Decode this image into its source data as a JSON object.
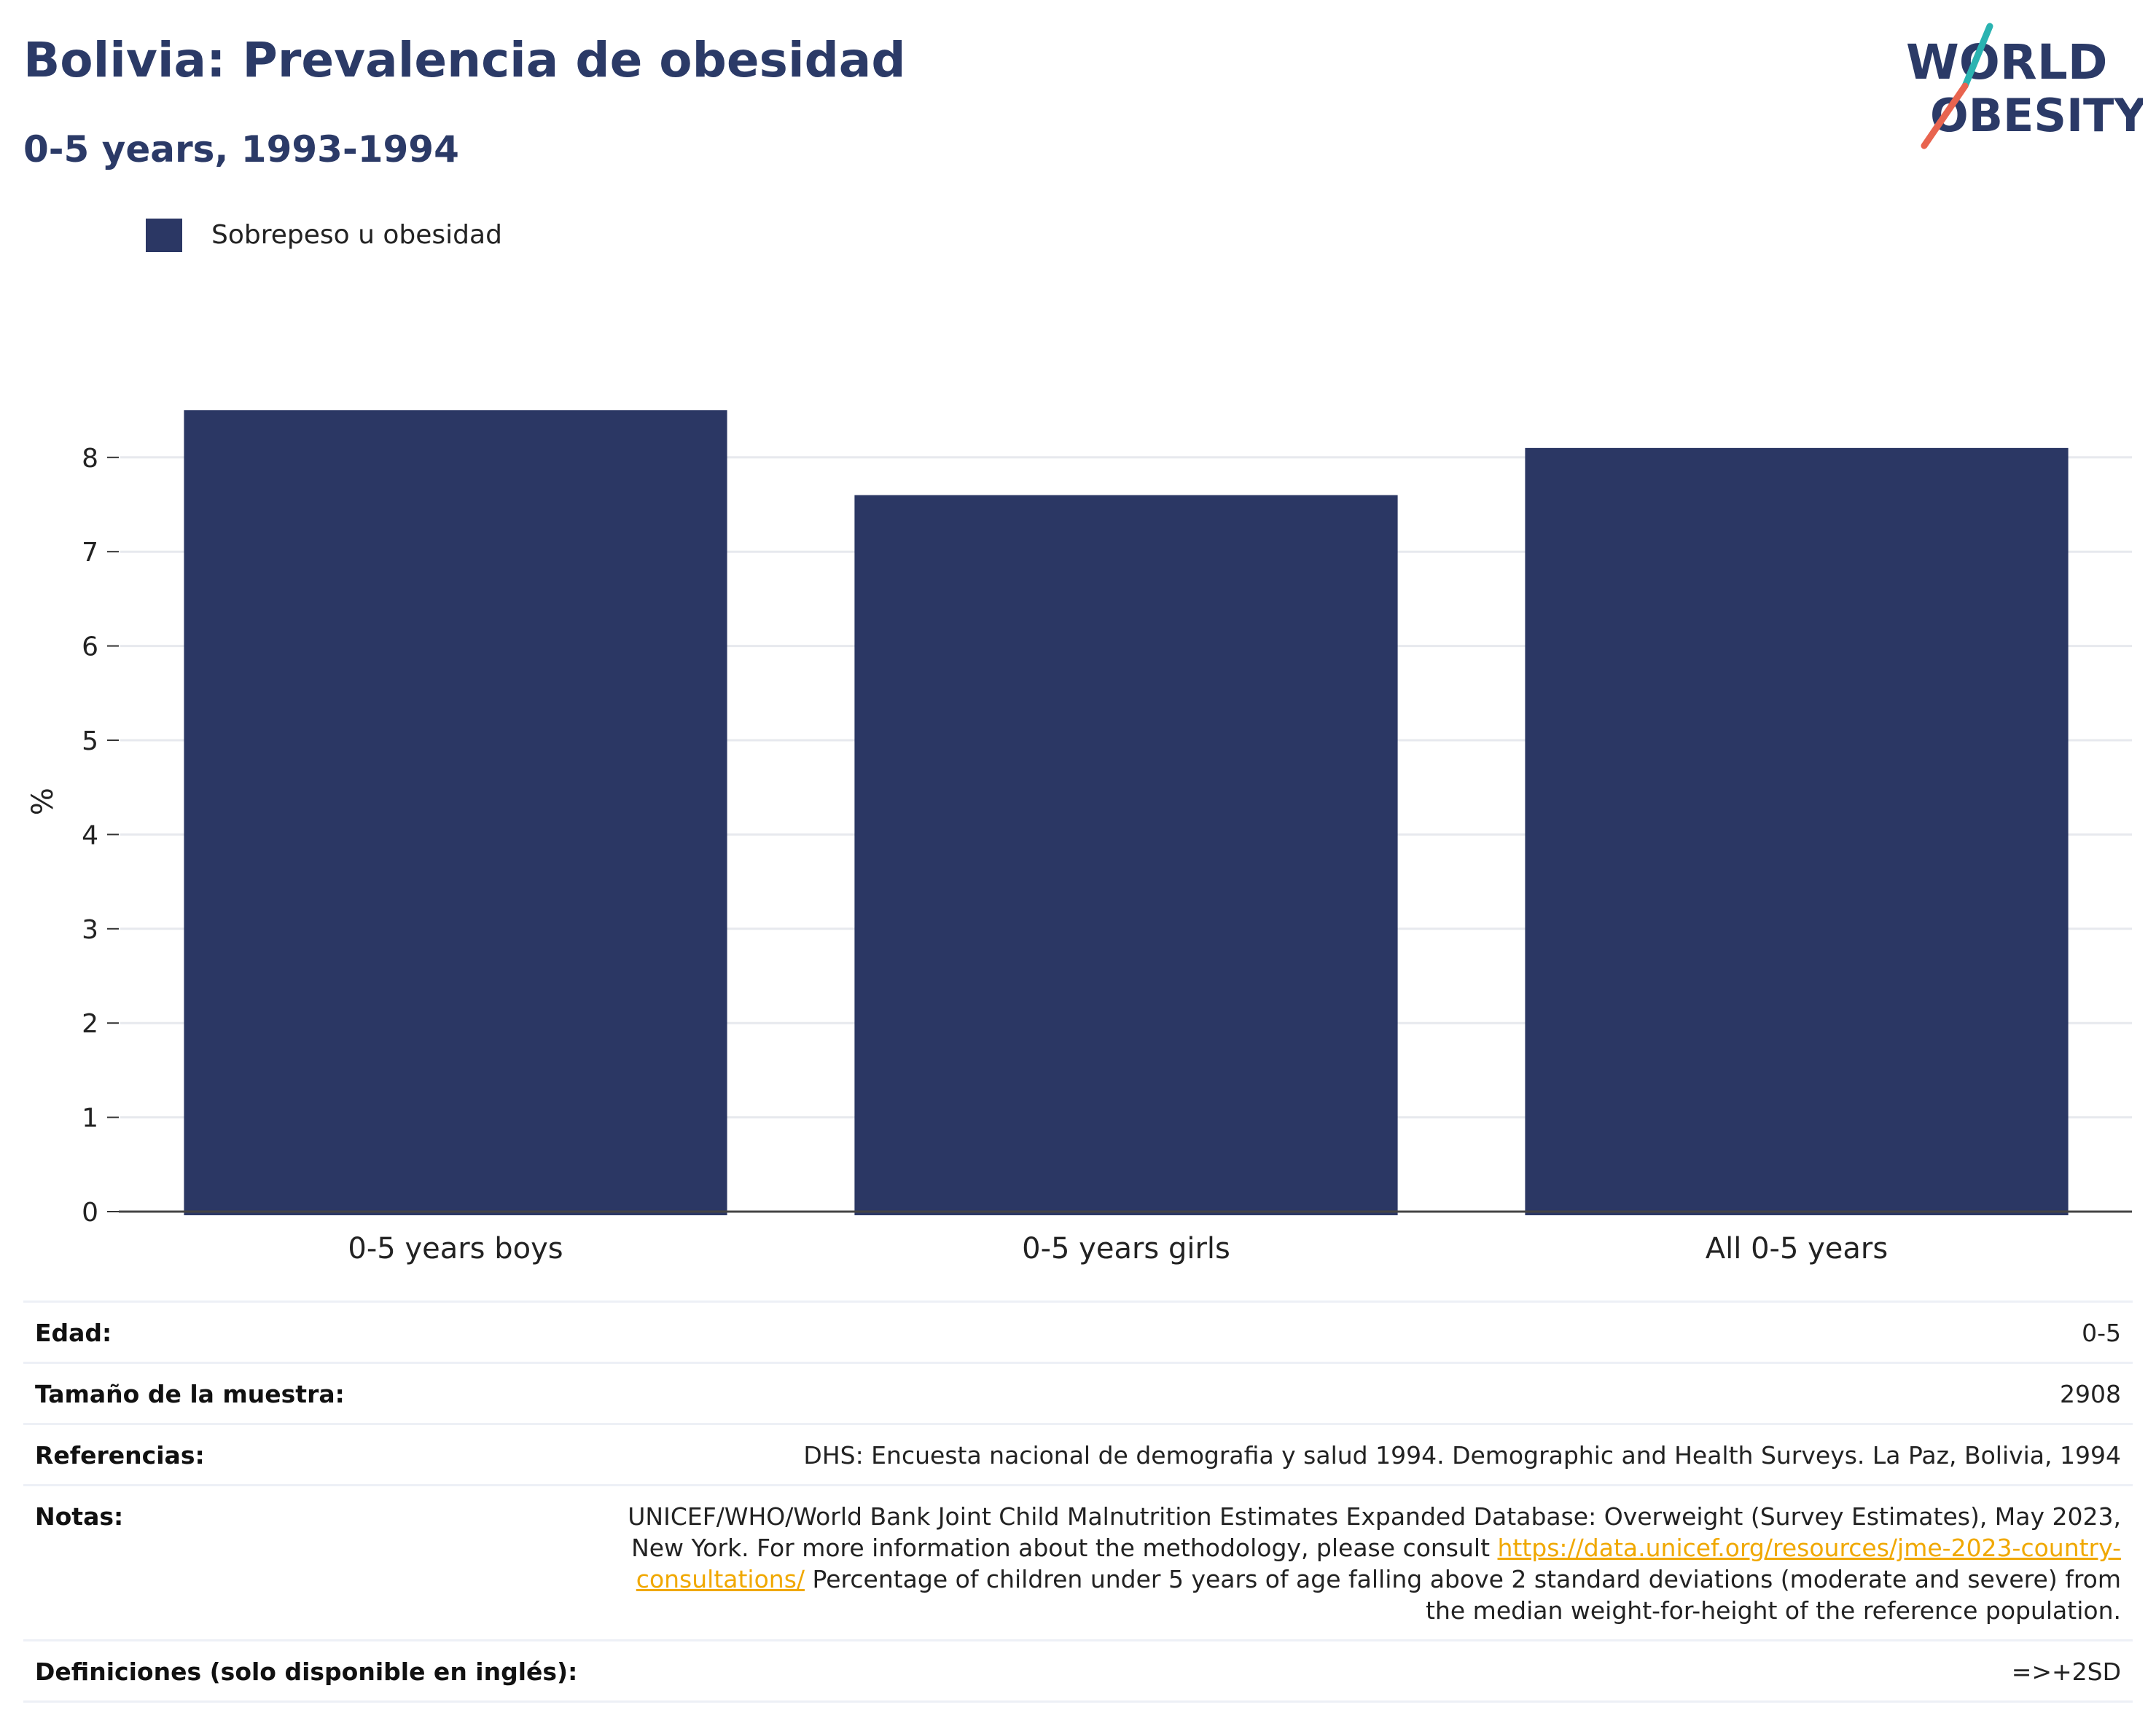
{
  "header": {
    "title": "Bolivia: Prevalencia de obesidad",
    "subtitle": "0-5 years, 1993-1994"
  },
  "logo": {
    "line1": "WORLD",
    "line2": "OBESITY",
    "colors": {
      "navy": "#2b3a67",
      "teal": "#2ab3b1",
      "coral": "#e8644f"
    }
  },
  "legend": {
    "label": "Sobrepeso u obesidad",
    "color": "#2b3764"
  },
  "chart_data": {
    "type": "bar",
    "categories": [
      "0-5 years boys",
      "0-5 years girls",
      "All 0-5 years"
    ],
    "series": [
      {
        "name": "Sobrepeso u obesidad",
        "values": [
          8.5,
          7.6,
          8.1
        ],
        "color": "#2b3764"
      }
    ],
    "title": "Bolivia: Prevalencia de obesidad",
    "subtitle": "0-5 years, 1993-1994",
    "xlabel": "",
    "ylabel": "%",
    "ylim": [
      0,
      8.7
    ],
    "yticks": [
      0,
      1,
      2,
      3,
      4,
      5,
      6,
      7,
      8
    ],
    "grid": true,
    "legend_position": "top-left"
  },
  "details": {
    "rows": [
      {
        "label": "Edad:",
        "value": "0-5"
      },
      {
        "label": "Tamaño de la muestra:",
        "value": "2908"
      },
      {
        "label": "Referencias:",
        "value": "DHS: Encuesta nacional de demografia y salud 1994. Demographic and Health Surveys. La Paz, Bolivia, 1994"
      }
    ],
    "notes": {
      "label": "Notas:",
      "text_before": "UNICEF/WHO/World Bank Joint Child Malnutrition Estimates Expanded Database: Overweight (Survey Estimates), May 2023, New York. For more information about the methodology, please consult ",
      "link": "https://data.unicef.org/resources/jme-2023-country-consultations/",
      "text_after": " Percentage of children under 5 years of age falling above 2 standard deviations (moderate and severe) from the median weight-for-height of the reference population."
    },
    "definitions": {
      "label": "Definiciones (solo disponible en inglés):",
      "value": "=>+2SD"
    }
  }
}
